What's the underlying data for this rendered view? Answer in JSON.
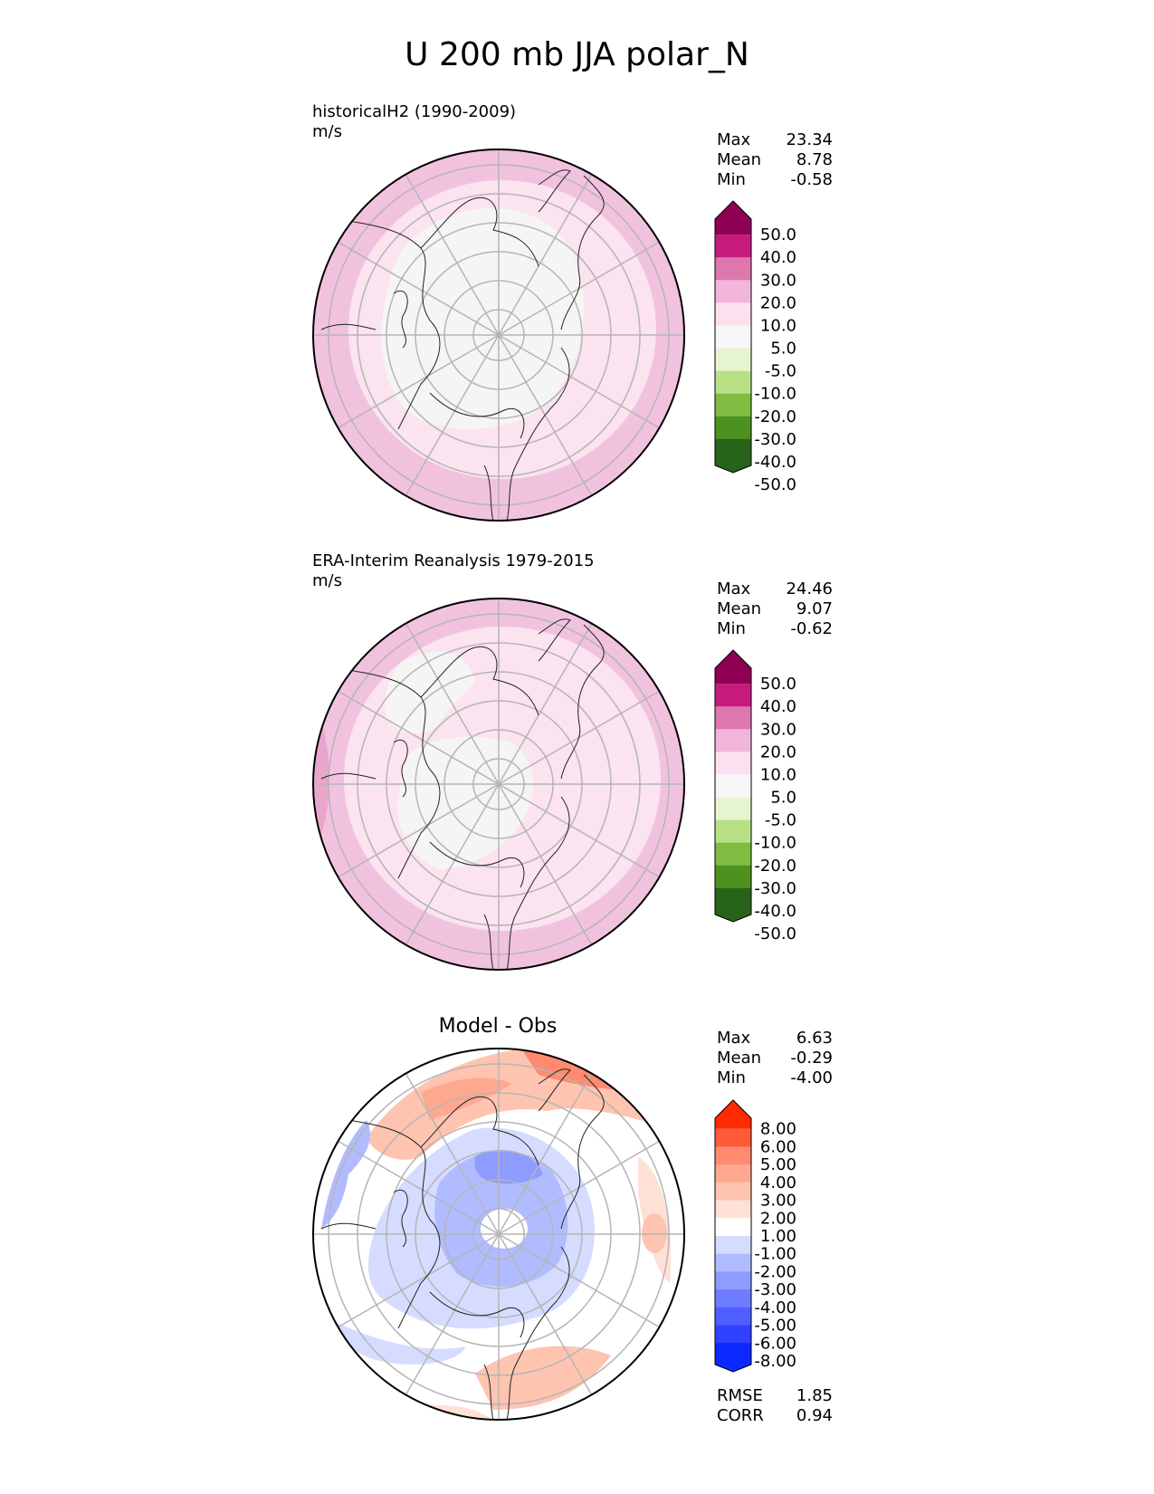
{
  "title": "U 200 mb JJA polar_N",
  "panels": [
    {
      "label": "historicalH2 (1990-2009)",
      "units": "m/s",
      "stats": [
        {
          "name": "Max",
          "value": "23.34"
        },
        {
          "name": "Mean",
          "value": "8.78"
        },
        {
          "name": "Min",
          "value": "-0.58"
        }
      ],
      "colorbar": {
        "ticks": [
          "50.0",
          "40.0",
          "30.0",
          "20.0",
          "10.0",
          "5.0",
          "-5.0",
          "-10.0",
          "-20.0",
          "-30.0",
          "-40.0",
          "-50.0"
        ],
        "colors": [
          "#8e0152",
          "#c51b7d",
          "#de77ae",
          "#f1b6da",
          "#fde0ef",
          "#f7f7f7",
          "#e6f5d0",
          "#b8e186",
          "#7fbc41",
          "#4d9221",
          "#276419"
        ]
      }
    },
    {
      "label": "ERA-Interim Reanalysis 1979-2015",
      "units": "m/s",
      "stats": [
        {
          "name": "Max",
          "value": "24.46"
        },
        {
          "name": "Mean",
          "value": "9.07"
        },
        {
          "name": "Min",
          "value": "-0.62"
        }
      ],
      "colorbar": {
        "ticks": [
          "50.0",
          "40.0",
          "30.0",
          "20.0",
          "10.0",
          "5.0",
          "-5.0",
          "-10.0",
          "-20.0",
          "-30.0",
          "-40.0",
          "-50.0"
        ],
        "colors": [
          "#8e0152",
          "#c51b7d",
          "#de77ae",
          "#f1b6da",
          "#fde0ef",
          "#f7f7f7",
          "#e6f5d0",
          "#b8e186",
          "#7fbc41",
          "#4d9221",
          "#276419"
        ]
      }
    },
    {
      "label": "Model - Obs",
      "stats": [
        {
          "name": "Max",
          "value": "6.63"
        },
        {
          "name": "Mean",
          "value": "-0.29"
        },
        {
          "name": "Min",
          "value": "-4.00"
        }
      ],
      "metrics": [
        {
          "name": "RMSE",
          "value": "1.85"
        },
        {
          "name": "CORR",
          "value": "0.94"
        }
      ],
      "colorbar": {
        "ticks": [
          "8.00",
          "6.00",
          "5.00",
          "4.00",
          "3.00",
          "2.00",
          "1.00",
          "-1.00",
          "-2.00",
          "-3.00",
          "-4.00",
          "-5.00",
          "-6.00",
          "-8.00"
        ],
        "colors": [
          "#ff2a00",
          "#ff5a3a",
          "#ff8a70",
          "#ffa890",
          "#ffc4b0",
          "#ffe0d6",
          "#ffffff",
          "#d6dcff",
          "#b0bcff",
          "#8e9cff",
          "#6e7cff",
          "#4f5fff",
          "#2f40ff",
          "#0a28ff"
        ]
      }
    }
  ]
}
